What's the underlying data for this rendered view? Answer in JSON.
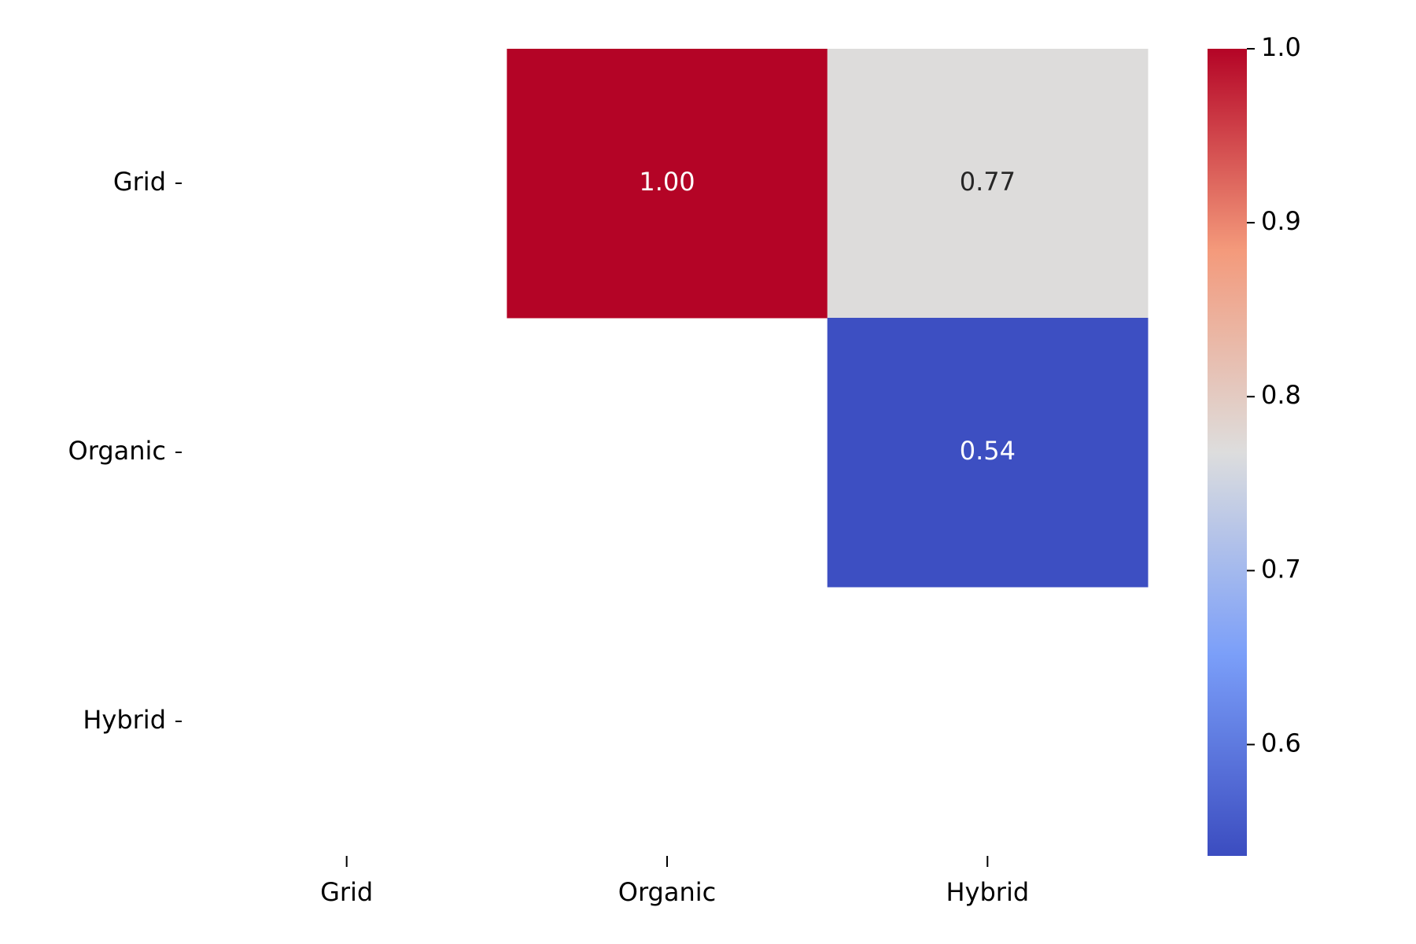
{
  "chart_data": {
    "type": "heatmap",
    "rows": [
      "Grid",
      "Organic",
      "Hybrid"
    ],
    "columns": [
      "Grid",
      "Organic",
      "Hybrid"
    ],
    "values": [
      [
        null,
        1,
        0.77
      ],
      [
        null,
        null,
        0.54
      ],
      [
        null,
        null,
        null
      ]
    ],
    "value_labels": [
      [
        null,
        "1.00",
        "0.77"
      ],
      [
        null,
        null,
        "0.54"
      ],
      [
        null,
        null,
        null
      ]
    ],
    "colormap": "coolwarm",
    "clim": [
      0.536,
      1
    ],
    "cticks": [
      0.6,
      0.7,
      0.8,
      0.9,
      {
        "value": 1,
        "label": "1.0"
      }
    ]
  }
}
